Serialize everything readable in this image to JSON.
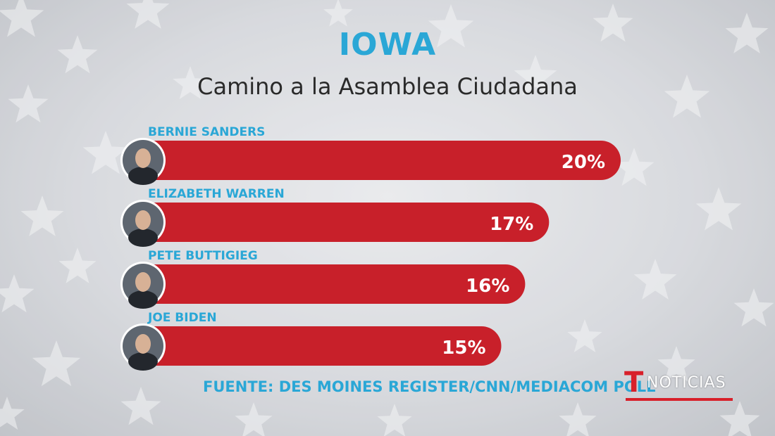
{
  "header": {
    "title": "IOWA",
    "subtitle": "Camino a la Asamblea Ciudadana"
  },
  "source": "FUENTE: DES MOINES REGISTER/CNN/MEDIACOM POLL",
  "logo": {
    "mark": "T",
    "word": "NOTICIAS"
  },
  "colors": {
    "bar": "#c8202a",
    "name_label": "#2aa7d6",
    "title": "#2aa7d6",
    "value_label": "#ffffff"
  },
  "chart_data": {
    "type": "bar",
    "orientation": "horizontal",
    "categories": [
      "BERNIE SANDERS",
      "ELIZABETH WARREN",
      "PETE BUTTIGIEG",
      "JOE BIDEN"
    ],
    "values": [
      20,
      17,
      16,
      15
    ],
    "value_labels": [
      "20%",
      "17%",
      "16%",
      "15%"
    ],
    "unit": "%",
    "title": "IOWA",
    "subtitle": "Camino a la Asamblea Ciudadana",
    "grid": false
  }
}
